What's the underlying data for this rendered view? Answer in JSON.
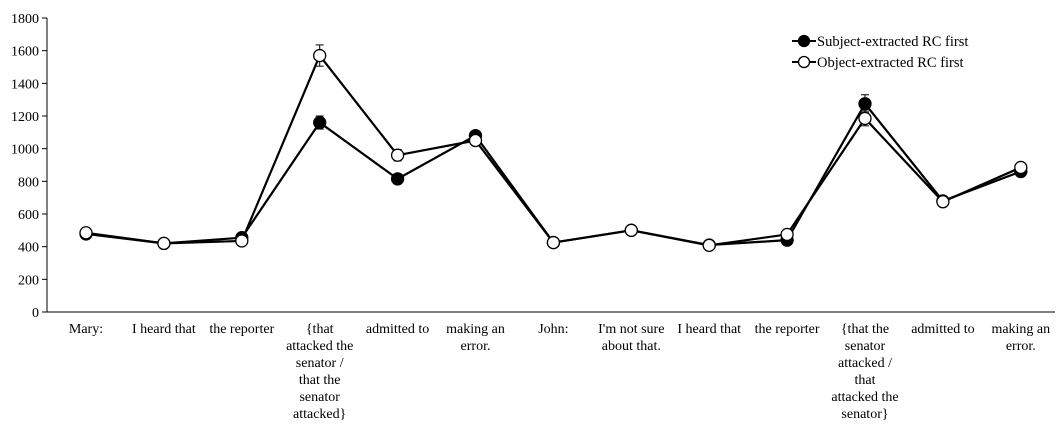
{
  "chart_data": {
    "type": "line",
    "title": "",
    "xlabel": "",
    "ylabel": "",
    "ylim": [
      0,
      1800
    ],
    "yticks": [
      0,
      200,
      400,
      600,
      800,
      1000,
      1200,
      1400,
      1600,
      1800
    ],
    "grid": false,
    "legend_position": "top-right",
    "categories": [
      [
        "Mary:"
      ],
      [
        "I heard that"
      ],
      [
        "the reporter"
      ],
      [
        "{that",
        "attacked the",
        "senator /",
        "that the",
        "senator",
        "attacked}"
      ],
      [
        "admitted to"
      ],
      [
        "making an",
        "error."
      ],
      [
        "John:"
      ],
      [
        "I'm not sure",
        "about that."
      ],
      [
        "I heard that"
      ],
      [
        "the reporter"
      ],
      [
        "{that the",
        "senator",
        "attacked /",
        "that",
        "attacked the",
        "senator}"
      ],
      [
        "admitted to"
      ],
      [
        "making an",
        "error."
      ]
    ],
    "series": [
      {
        "name": "Subject-extracted RC first",
        "marker": "filled-circle",
        "color": "#000000",
        "values": [
          478,
          420,
          455,
          1160,
          815,
          1080,
          425,
          500,
          410,
          440,
          1275,
          680,
          860
        ],
        "errors": [
          10,
          8,
          10,
          40,
          15,
          25,
          8,
          10,
          8,
          12,
          55,
          12,
          20
        ]
      },
      {
        "name": "Object-extracted RC first",
        "marker": "open-circle",
        "color": "#000000",
        "values": [
          485,
          420,
          435,
          1570,
          960,
          1050,
          425,
          500,
          408,
          475,
          1185,
          675,
          885
        ],
        "errors": [
          10,
          8,
          10,
          65,
          35,
          20,
          8,
          10,
          8,
          12,
          45,
          12,
          25
        ]
      }
    ]
  }
}
